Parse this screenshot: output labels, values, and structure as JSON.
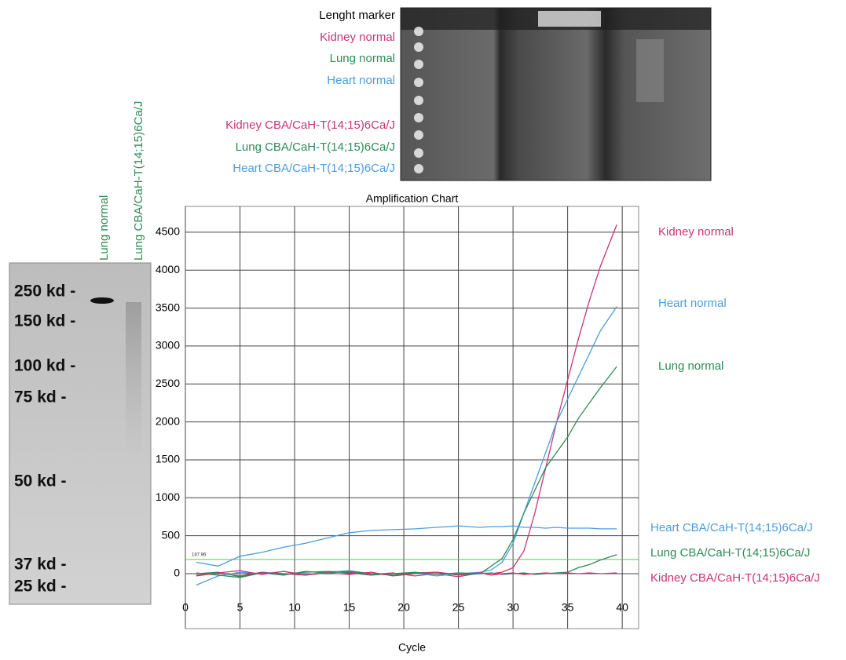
{
  "chart_data": {
    "type": "line",
    "title": "Amplification Chart",
    "x_label": "Cycle",
    "x": [
      1,
      3,
      5,
      7,
      9,
      11,
      13,
      15,
      17,
      19,
      21,
      23,
      25,
      27,
      28,
      29,
      30,
      31,
      32,
      33,
      34,
      35,
      36,
      37,
      38,
      39.5
    ],
    "series": [
      {
        "name": "Kidney normal",
        "color": "#cc3377",
        "values": [
          -20,
          10,
          -30,
          20,
          0,
          -20,
          30,
          20,
          -10,
          10,
          -30,
          0,
          -40,
          10,
          0,
          20,
          80,
          300,
          800,
          1400,
          2000,
          2550,
          3100,
          3600,
          4050,
          4600
        ]
      },
      {
        "name": "Heart normal",
        "color": "#4a9de0",
        "values": [
          -150,
          -30,
          20,
          0,
          30,
          -10,
          20,
          40,
          0,
          -20,
          10,
          -30,
          0,
          20,
          50,
          150,
          400,
          800,
          1200,
          1600,
          2000,
          2300,
          2600,
          2900,
          3200,
          3520
        ]
      },
      {
        "name": "Lung normal",
        "color": "#2e8b57",
        "values": [
          10,
          -20,
          -50,
          10,
          -10,
          20,
          30,
          10,
          -20,
          0,
          20,
          -10,
          10,
          0,
          100,
          200,
          450,
          800,
          1100,
          1400,
          1600,
          1800,
          2050,
          2250,
          2450,
          2730
        ]
      },
      {
        "name": "Heart CBA/CaH-T(14;15)6Ca/J",
        "color": "#4a9de0",
        "values": [
          150,
          100,
          230,
          280,
          350,
          400,
          470,
          540,
          570,
          580,
          590,
          610,
          630,
          610,
          620,
          620,
          630,
          610,
          610,
          600,
          610,
          600,
          600,
          600,
          590,
          590
        ]
      },
      {
        "name": "Lung CBA/CaH-T(14;15)6Ca/J",
        "color": "#2e8b57",
        "values": [
          0,
          20,
          -40,
          10,
          -20,
          30,
          10,
          30,
          0,
          -20,
          10,
          20,
          -20,
          0,
          10,
          -10,
          0,
          10,
          -10,
          0,
          10,
          20,
          80,
          120,
          180,
          250
        ]
      },
      {
        "name": "Kidney CBA/CaH-T(14;15)6Ca/J",
        "color": "#cc3377",
        "values": [
          -30,
          10,
          40,
          -10,
          30,
          -20,
          10,
          -10,
          20,
          -30,
          0,
          20,
          -10,
          10,
          -20,
          0,
          10,
          -10,
          0,
          10,
          0,
          10,
          0,
          10,
          0,
          10
        ]
      }
    ],
    "threshold": 187.96,
    "xlim": [
      0,
      41.5
    ],
    "xticks": [
      0,
      5,
      10,
      15,
      20,
      25,
      30,
      35,
      40
    ],
    "ylim": [
      -724,
      4840
    ],
    "yticks": [
      0,
      500,
      1000,
      1500,
      2000,
      2500,
      3000,
      3500,
      4000,
      4500
    ],
    "grid": true
  },
  "gel": {
    "labels": [
      {
        "text": "Lenght marker",
        "color": "#000000"
      },
      {
        "text": "Kidney normal",
        "color": "#cc3377"
      },
      {
        "text": "Lung normal",
        "color": "#2e8b57"
      },
      {
        "text": "Heart normal",
        "color": "#4a9de0"
      },
      {
        "text": "Kidney CBA/CaH-T(14;15)6Ca/J",
        "color": "#cc3377"
      },
      {
        "text": "Lung CBA/CaH-T(14;15)6Ca/J",
        "color": "#2e8b57"
      },
      {
        "text": "Heart CBA/CaH-T(14;15)6Ca/J",
        "color": "#4a9de0"
      }
    ]
  },
  "western_blot": {
    "lanes": [
      "Lung normal",
      "Lung CBA/CaH-T(14;15)6Ca/J"
    ],
    "markers": [
      "250 kd -",
      "150 kd -",
      "100 kd -",
      "75 kd -",
      "50 kd -",
      "37 kd -",
      "25 kd -"
    ]
  }
}
